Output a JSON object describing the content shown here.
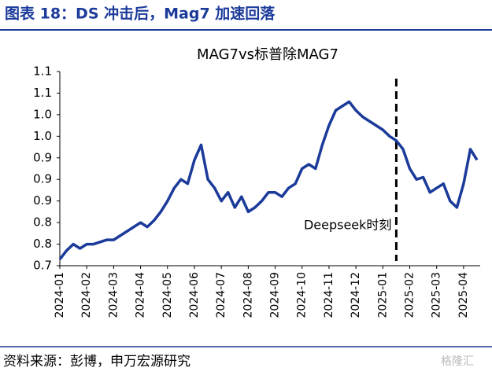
{
  "header": "图表 18：DS 冲击后，Mag7 加速回落",
  "source": "资料来源：彭博，申万宏源研究",
  "watermark": "格隆汇",
  "chart_data": {
    "type": "line",
    "title": "MAG7vs标普除MAG7",
    "annotation": "Deepseek时刻",
    "categories": [
      "2024-01",
      null,
      null,
      null,
      "2024-02",
      null,
      null,
      null,
      "2024-03",
      null,
      null,
      null,
      "2024-04",
      null,
      null,
      null,
      "2024-05",
      null,
      null,
      null,
      "2024-06",
      null,
      null,
      null,
      "2024-07",
      null,
      null,
      null,
      "2024-08",
      null,
      null,
      null,
      "2024-09",
      null,
      null,
      null,
      "2024-10",
      null,
      null,
      null,
      "2024-11",
      null,
      null,
      null,
      "2024-12",
      null,
      null,
      null,
      "2025-01",
      null,
      null,
      null,
      "2025-02",
      null,
      null,
      null,
      "2025-03",
      null,
      null,
      null,
      "2025-04",
      null,
      null
    ],
    "series": [
      {
        "color": "#1b3a9a",
        "values": [
          0.715,
          0.735,
          0.75,
          0.74,
          0.75,
          0.75,
          0.755,
          0.76,
          0.76,
          0.77,
          0.78,
          0.79,
          0.8,
          0.79,
          0.805,
          0.825,
          0.85,
          0.88,
          0.9,
          0.89,
          0.945,
          0.98,
          0.9,
          0.88,
          0.85,
          0.87,
          0.835,
          0.86,
          0.825,
          0.835,
          0.85,
          0.87,
          0.87,
          0.86,
          0.88,
          0.89,
          0.925,
          0.935,
          0.925,
          0.98,
          1.025,
          1.06,
          1.07,
          1.08,
          1.06,
          1.045,
          1.035,
          1.025,
          1.015,
          1.0,
          0.99,
          0.97,
          0.925,
          0.9,
          0.905,
          0.87,
          0.88,
          0.89,
          0.85,
          0.835,
          0.89,
          0.97,
          0.945
        ]
      }
    ],
    "ylim": [
      0.7,
      1.15
    ],
    "yticks": [
      {
        "value": 0.7,
        "label": "0.7"
      },
      {
        "value": 0.75,
        "label": "0.8"
      },
      {
        "value": 0.8,
        "label": "0.8"
      },
      {
        "value": 0.85,
        "label": "0.9"
      },
      {
        "value": 0.9,
        "label": "0.9"
      },
      {
        "value": 0.95,
        "label": "0.9"
      },
      {
        "value": 1.0,
        "label": "1.0"
      },
      {
        "value": 1.05,
        "label": "1.0"
      },
      {
        "value": 1.1,
        "label": "1.1"
      },
      {
        "value": 1.15,
        "label": "1.1"
      }
    ],
    "grid": false
  }
}
